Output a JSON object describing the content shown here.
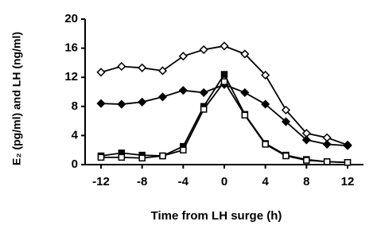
{
  "chart_data": {
    "type": "line",
    "x_label": "Time from LH surge (h)",
    "y_label": "E₂ (pg/ml) and LH (ng/ml)",
    "x": [
      -12,
      -10,
      -8,
      -6,
      -4,
      -2,
      0,
      2,
      4,
      6,
      8,
      10,
      12
    ],
    "series": [
      {
        "color": "#000000",
        "marker": "diamond-open",
        "values": [
          12.7,
          13.5,
          13.3,
          12.9,
          14.9,
          15.8,
          16.3,
          15.2,
          12.3,
          7.5,
          4.3,
          3.7,
          2.7
        ]
      },
      {
        "color": "#000000",
        "marker": "diamond-filled",
        "values": [
          8.4,
          8.3,
          8.6,
          9.3,
          10.2,
          9.9,
          11.0,
          9.9,
          8.3,
          5.9,
          3.4,
          2.8,
          2.6
        ]
      },
      {
        "color": "#000000",
        "marker": "square-filled",
        "values": [
          1.2,
          1.6,
          1.3,
          1.2,
          2.5,
          8.0,
          12.4,
          6.9,
          2.9,
          1.3,
          0.7,
          0.4,
          0.3
        ]
      },
      {
        "color": "#000000",
        "marker": "square-open",
        "values": [
          1.0,
          1.0,
          0.9,
          1.2,
          2.0,
          7.6,
          11.4,
          6.8,
          2.8,
          1.2,
          0.6,
          0.4,
          0.3
        ]
      }
    ],
    "xlim": [
      -12,
      12
    ],
    "xticks": [
      -12,
      -8,
      -4,
      0,
      4,
      8,
      12
    ],
    "ylim": [
      0,
      20
    ],
    "yticks": [
      0,
      4,
      8,
      12,
      16,
      20
    ]
  }
}
